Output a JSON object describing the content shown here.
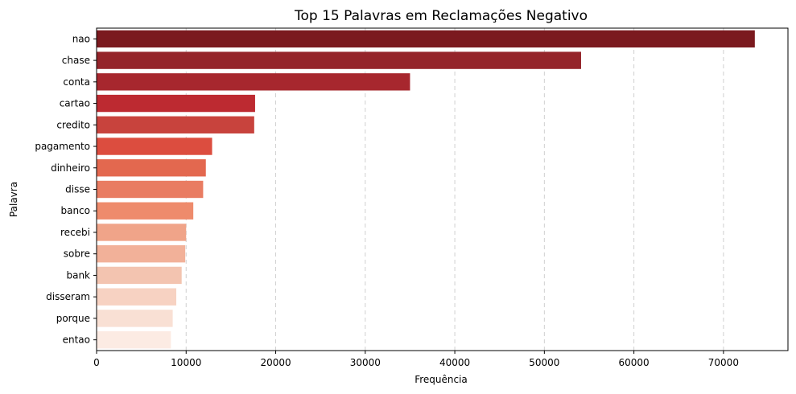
{
  "chart_data": {
    "type": "bar",
    "orientation": "horizontal",
    "title": "Top 15 Palavras em Reclamações Negativo",
    "xlabel": "Frequência",
    "ylabel": "Palavra",
    "categories": [
      "nao",
      "chase",
      "conta",
      "cartao",
      "credito",
      "pagamento",
      "dinheiro",
      "disse",
      "banco",
      "recebi",
      "sobre",
      "bank",
      "disseram",
      "porque",
      "entao"
    ],
    "values": [
      73500,
      54100,
      35000,
      17700,
      17600,
      12900,
      12200,
      11900,
      10800,
      10000,
      9900,
      9500,
      8900,
      8500,
      8300
    ],
    "colors": [
      "#7b1a1f",
      "#94242a",
      "#a7272e",
      "#bd2a31",
      "#c8433d",
      "#dc4d3f",
      "#e3684f",
      "#e97c62",
      "#ee8b6c",
      "#f0a489",
      "#f2b199",
      "#f3c4b0",
      "#f7d2c2",
      "#f9e0d4",
      "#fcebe3"
    ],
    "xlim": [
      0,
      77200
    ],
    "xticks": [
      "0",
      "10000",
      "20000",
      "30000",
      "40000",
      "50000",
      "60000",
      "70000"
    ],
    "xtick_values": [
      0,
      10000,
      20000,
      30000,
      40000,
      50000,
      60000,
      70000
    ],
    "grid": "x-axis dashed",
    "legend": "none"
  }
}
